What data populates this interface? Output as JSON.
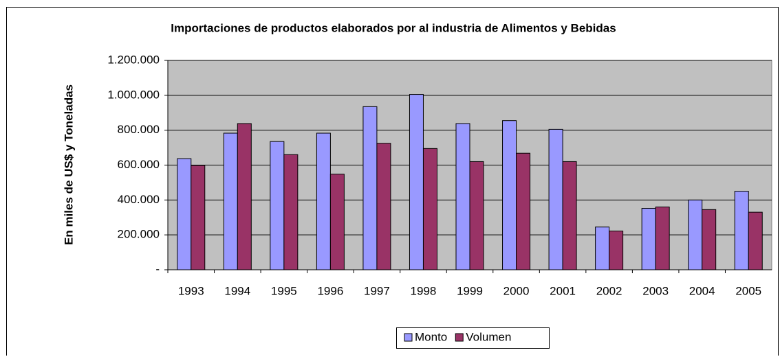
{
  "chart_data": {
    "type": "bar",
    "title": "Importaciones de productos elaborados por al industria de Alimentos y Bebidas",
    "y_label": "En miles de US$ y Toneladas",
    "categories": [
      "1993",
      "1994",
      "1995",
      "1996",
      "1997",
      "1998",
      "1999",
      "2000",
      "2001",
      "2002",
      "2003",
      "2004",
      "2005"
    ],
    "series": [
      {
        "name": "Monto",
        "color": "#9999ff",
        "values": [
          637000,
          783000,
          735000,
          783000,
          935000,
          1005000,
          838000,
          855000,
          805000,
          245000,
          352000,
          400000,
          450000
        ]
      },
      {
        "name": "Volumen",
        "color": "#993366",
        "values": [
          598000,
          838000,
          660000,
          548000,
          725000,
          695000,
          620000,
          668000,
          620000,
          222000,
          360000,
          345000,
          330000
        ]
      }
    ],
    "ylim": [
      0,
      1200000
    ],
    "yticks": [
      {
        "value": 0,
        "label": "-"
      },
      {
        "value": 200000,
        "label": "200.000"
      },
      {
        "value": 400000,
        "label": "400.000"
      },
      {
        "value": 600000,
        "label": "600.000"
      },
      {
        "value": 800000,
        "label": "800.000"
      },
      {
        "value": 1000000,
        "label": "1.000.000"
      },
      {
        "value": 1200000,
        "label": "1.200.000"
      }
    ],
    "grid": true,
    "legend": "bottom"
  }
}
